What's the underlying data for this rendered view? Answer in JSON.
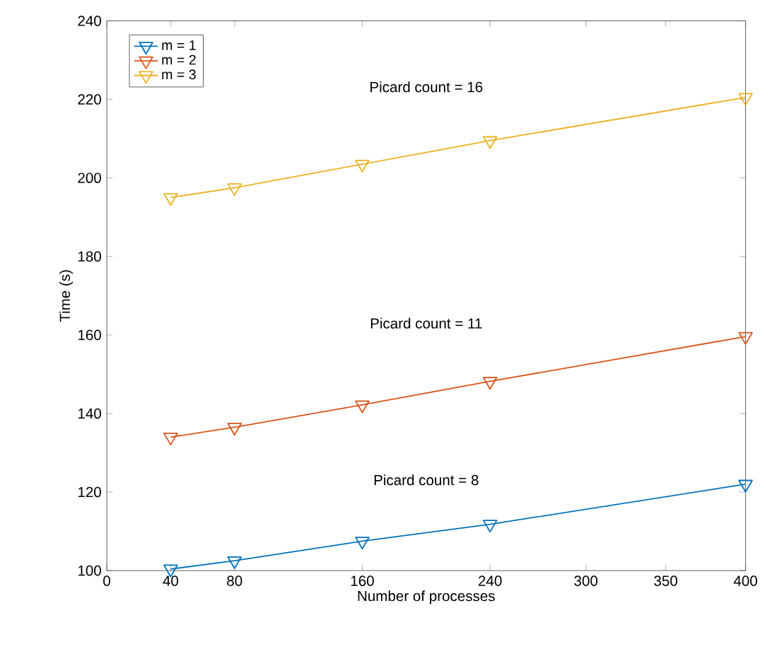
{
  "chart_data": {
    "type": "line",
    "xlabel": "Number of processes",
    "ylabel": "Time (s)",
    "xlim": [
      0,
      400
    ],
    "xticks": [
      0,
      40,
      80,
      160,
      240,
      300,
      350,
      400
    ],
    "ylim": [
      100,
      240
    ],
    "yticks": [
      100,
      120,
      140,
      160,
      180,
      200,
      220,
      240
    ],
    "x": [
      40,
      80,
      160,
      240,
      400
    ],
    "series": [
      {
        "name": "m = 1",
        "color": "#0072bd",
        "values": [
          100.4,
          102.5,
          107.5,
          111.8,
          122
        ]
      },
      {
        "name": "m = 2",
        "color": "#d95319",
        "values": [
          134,
          136.5,
          142.2,
          148.2,
          159.6
        ]
      },
      {
        "name": "m = 3",
        "color": "#edb120",
        "values": [
          195,
          197.5,
          203.5,
          209.5,
          220.5
        ]
      }
    ],
    "annotations": [
      "Picard count = 16",
      "Picard count = 11",
      "Picard count = 8"
    ],
    "legend": "top left",
    "marker": "triangle",
    "line_style": "solid",
    "grid": false
  }
}
